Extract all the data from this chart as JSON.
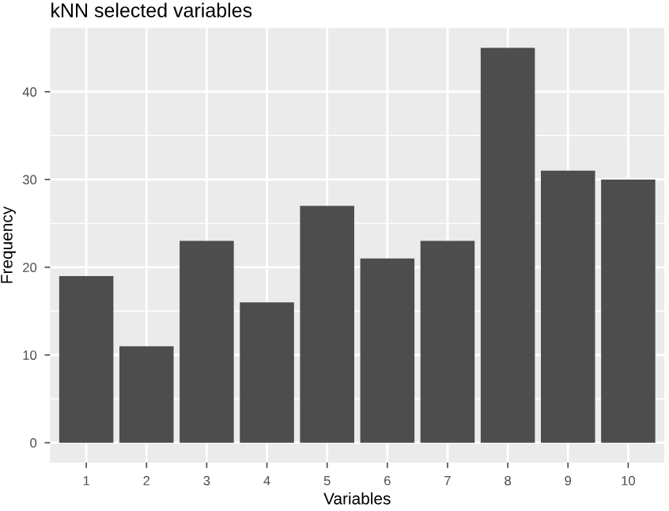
{
  "chart_data": {
    "type": "bar",
    "title": "kNN selected variables",
    "xlabel": "Variables",
    "ylabel": "Frequency",
    "categories": [
      "1",
      "2",
      "3",
      "4",
      "5",
      "6",
      "7",
      "8",
      "9",
      "10"
    ],
    "values": [
      19,
      11,
      23,
      16,
      27,
      21,
      23,
      45,
      31,
      30
    ],
    "color": "#4d4d4d",
    "ylim": [
      -2.25,
      47.25
    ],
    "yticks": [
      0,
      10,
      20,
      30,
      40
    ],
    "grid": true
  }
}
